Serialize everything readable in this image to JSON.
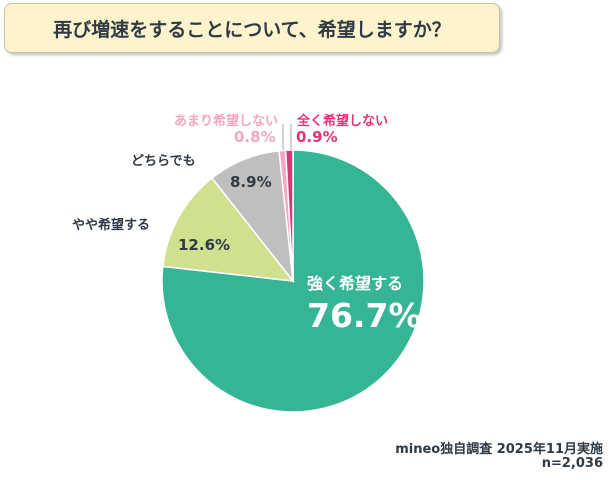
{
  "title": "再び増速をすることについて、希望しますか？",
  "chart_data": {
    "type": "pie",
    "start": "12 o'clock, clockwise",
    "categories": [
      "強く希望する",
      "やや希望する",
      "どちらでも",
      "あまり希望しない",
      "全く希望しない"
    ],
    "values": [
      76.7,
      12.6,
      8.9,
      0.8,
      0.9
    ],
    "value_labels": [
      "76.7%",
      "12.6%",
      "8.9%",
      "0.8%",
      "0.9%"
    ],
    "colors": [
      "#35b595",
      "#cfe08f",
      "#bfbfbf",
      "#f4a6c4",
      "#e5317a"
    ]
  },
  "footer": {
    "source": "mineo独自調査 2025年11月実施",
    "n": "n=2,036"
  }
}
